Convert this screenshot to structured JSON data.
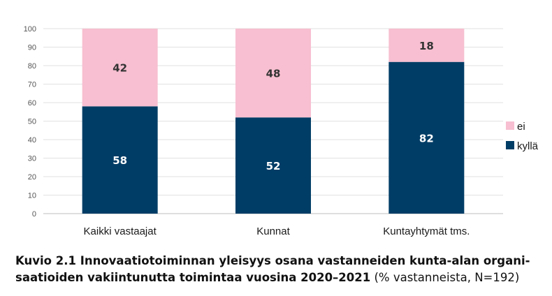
{
  "chart_data": {
    "type": "bar",
    "stacked": true,
    "categories": [
      "Kaikki vastaajat",
      "Kunnat",
      "Kuntayhtymät tms."
    ],
    "series": [
      {
        "name": "kyllä",
        "values": [
          58,
          52,
          82
        ],
        "color": "#003d66"
      },
      {
        "name": "ei",
        "values": [
          42,
          48,
          18
        ],
        "color": "#f7bfd1"
      }
    ],
    "ylim": [
      0,
      100
    ],
    "yticks": [
      "0",
      "10",
      "20",
      "30",
      "40",
      "50",
      "60",
      "70",
      "80",
      "90",
      "100"
    ],
    "grid": true,
    "legend": "right",
    "label_colors": {
      "kyllä": "#ffffff",
      "ei": "#333333"
    }
  },
  "caption": {
    "bold_line1": "Kuvio 2.1 Innovaatiotoiminnan yleisyys osana vastanneiden kunta-alan organi-",
    "bold_line2": "saatioiden vakiintunutta toimintaa vuosina 2020–2021",
    "normal_suffix": " (% vastanneista, N=192)"
  }
}
